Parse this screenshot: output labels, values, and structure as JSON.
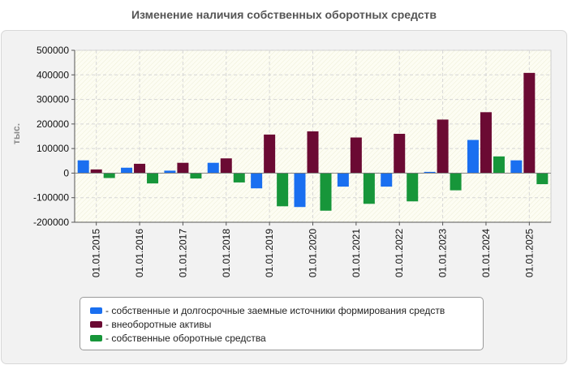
{
  "title": "Изменение наличия собственных оборотных средств",
  "chart_data": {
    "type": "bar",
    "title": "Изменение наличия собственных оборотных средств",
    "ylabel": "тыс.",
    "xlabel": "",
    "ylim": [
      -200000,
      500000
    ],
    "yticks": [
      500000,
      400000,
      300000,
      200000,
      100000,
      0,
      -100000,
      -200000
    ],
    "ytick_labels": [
      "500000",
      "400000",
      "300000",
      "200000",
      "100000",
      "0",
      "-100000",
      "-200000"
    ],
    "categories": [
      "01.01.2015",
      "01.01.2016",
      "01.01.2017",
      "01.01.2018",
      "01.01.2019",
      "01.01.2020",
      "01.01.2021",
      "01.01.2022",
      "01.01.2023",
      "01.01.2024",
      "01.01.2025"
    ],
    "series": [
      {
        "name": "- собственные и долгосрочные заемные источники формирования средств",
        "color": "#1a6ff0",
        "values": [
          52000,
          22000,
          10000,
          42000,
          -62000,
          -138000,
          -55000,
          -55000,
          5000,
          135000,
          52000
        ]
      },
      {
        "name": "- внеоборотные активы",
        "color": "#6b0a33",
        "values": [
          15000,
          38000,
          42000,
          60000,
          157000,
          170000,
          145000,
          160000,
          218000,
          248000,
          408000
        ]
      },
      {
        "name": "- собственные оборотные средства",
        "color": "#17963a",
        "values": [
          -20000,
          -42000,
          -22000,
          -38000,
          -135000,
          -153000,
          -125000,
          -115000,
          -70000,
          68000,
          -45000
        ]
      }
    ],
    "grid": true,
    "legend": "bottom"
  }
}
